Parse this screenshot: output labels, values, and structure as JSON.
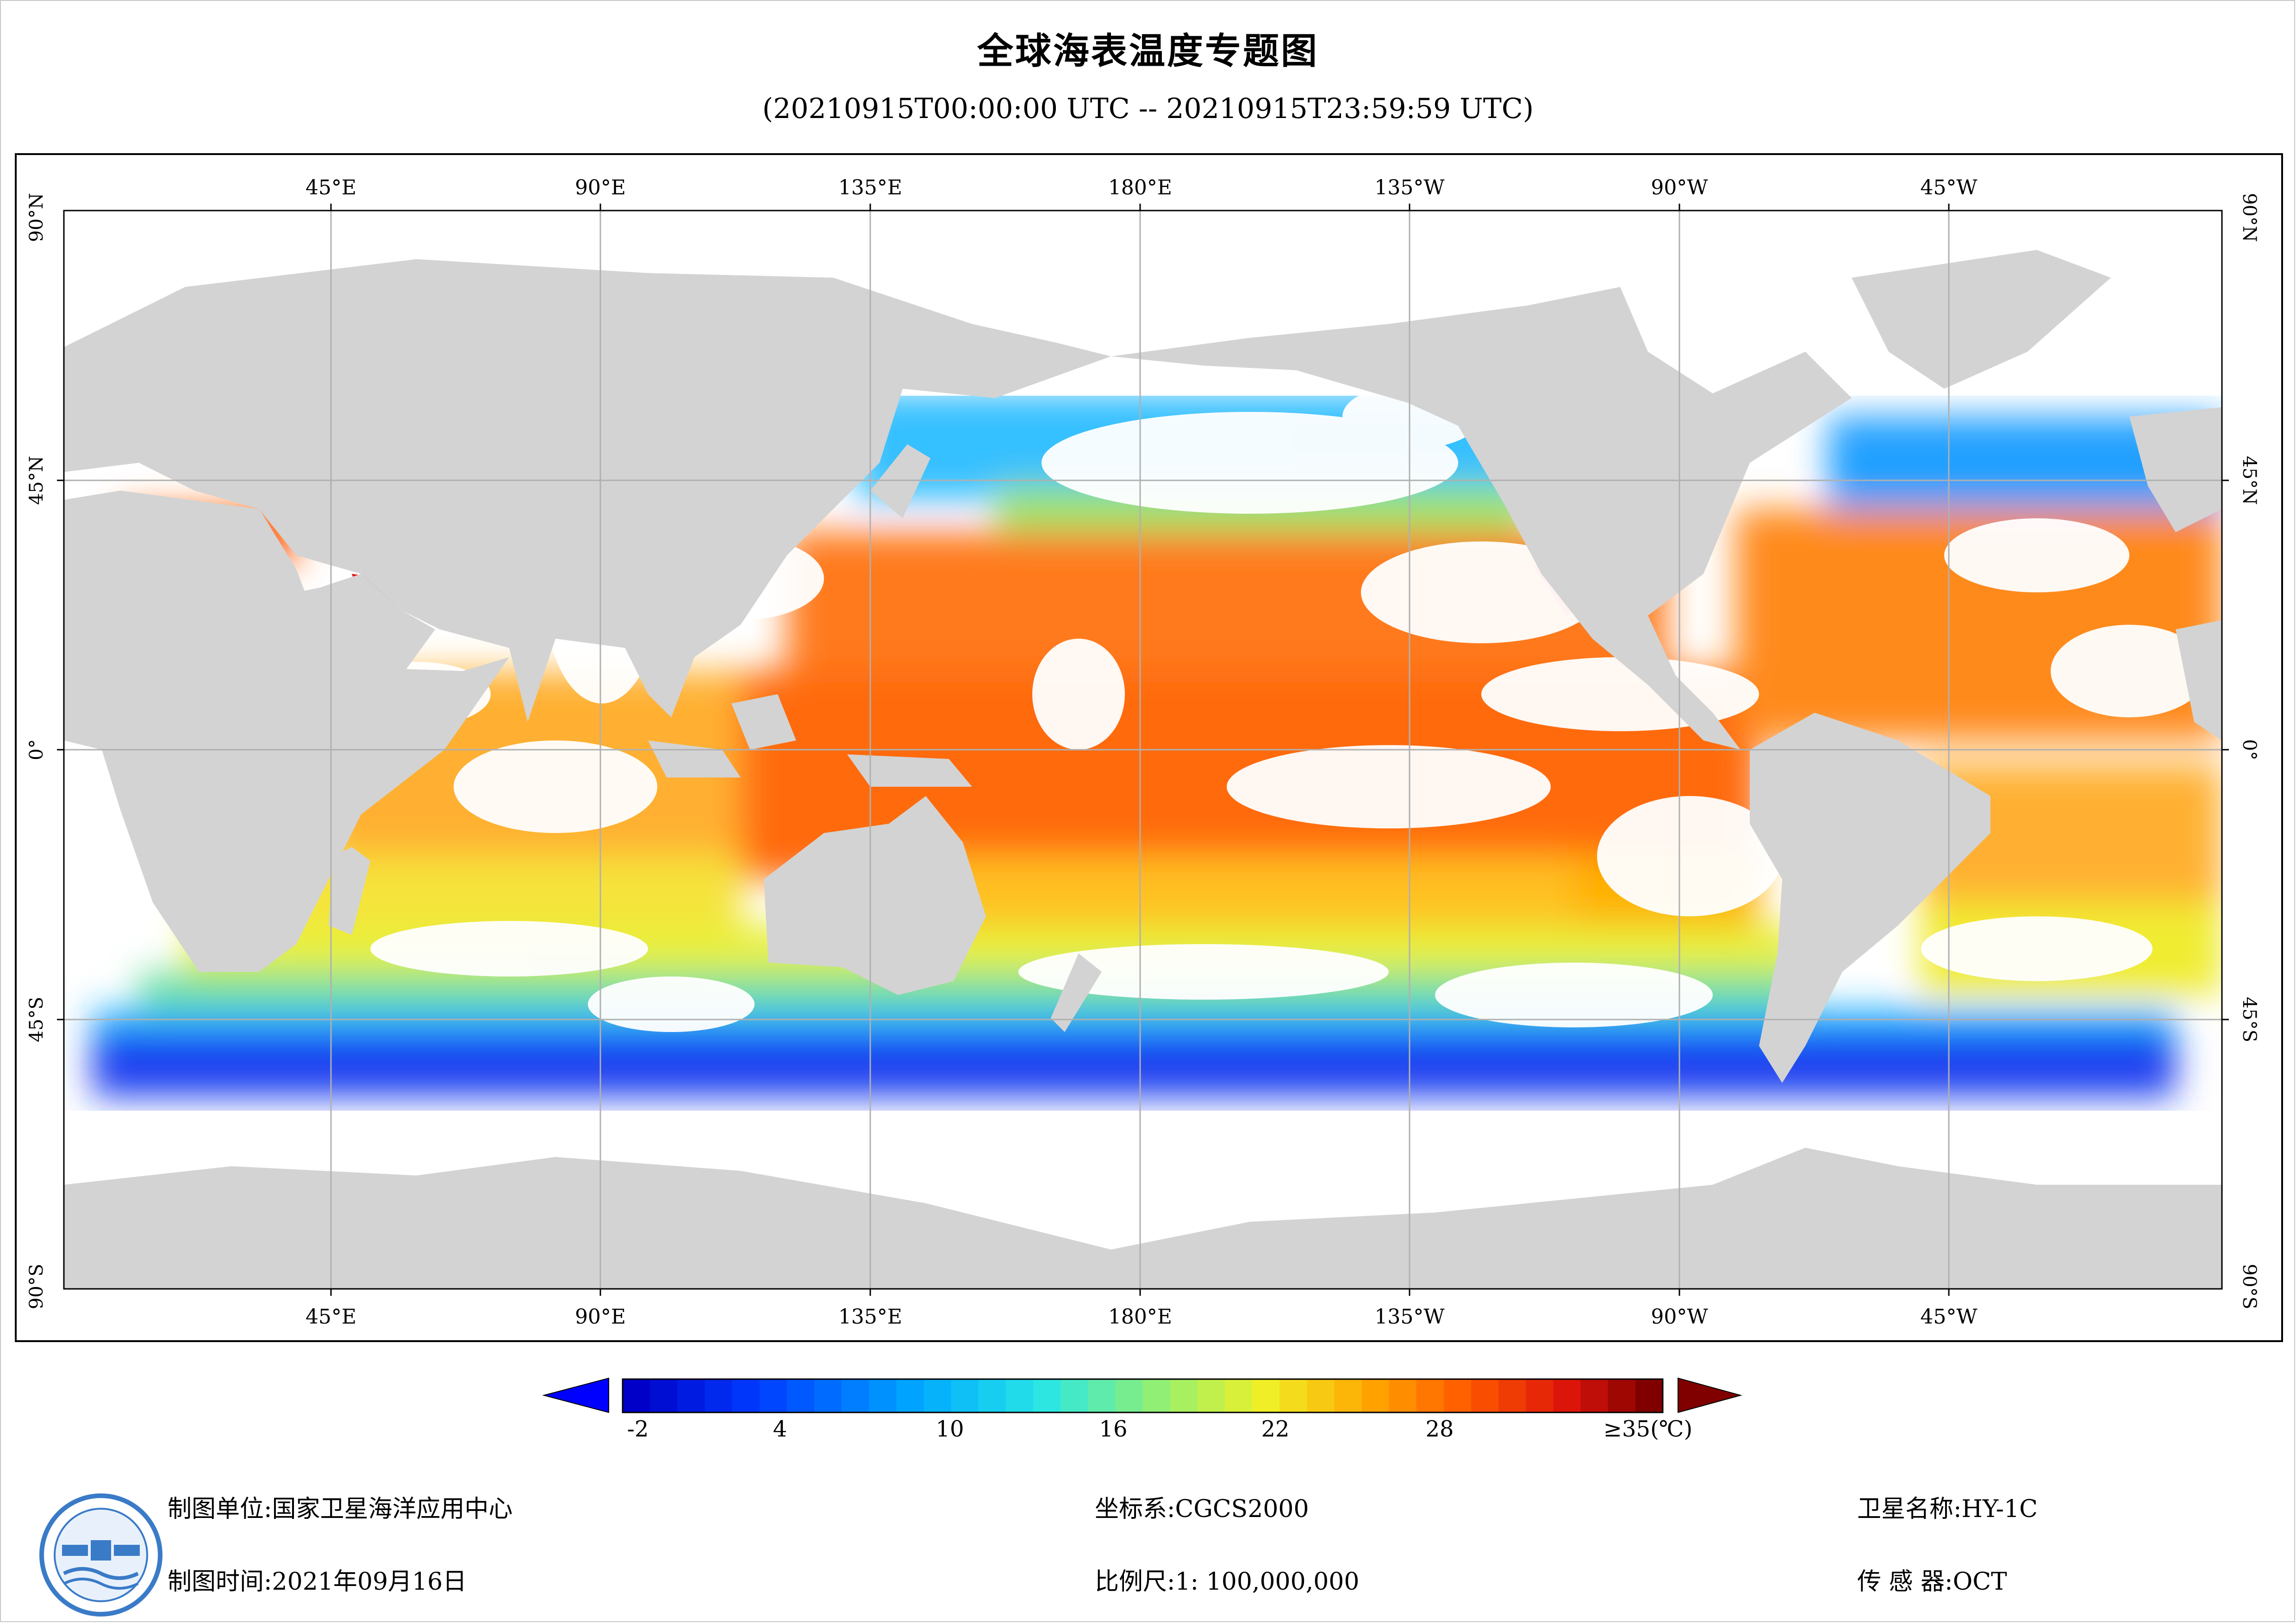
{
  "title": "全球海表温度专题图",
  "subtitle": "(20210915T00:00:00 UTC -- 20210915T23:59:59 UTC)",
  "map": {
    "lon_labels_top": [
      "45°E",
      "90°E",
      "135°E",
      "180°E",
      "135°W",
      "90°W",
      "45°W"
    ],
    "lon_labels_bottom": [
      "45°E",
      "90°E",
      "135°E",
      "180°E",
      "135°W",
      "90°W",
      "45°W"
    ],
    "lat_labels_left": [
      "90°N",
      "45°N",
      "0°",
      "45°S",
      "90°S"
    ],
    "lat_labels_right": [
      "90°N",
      "45°N",
      "0°",
      "45°S",
      "90°S"
    ],
    "land_color": "#d3d3d3",
    "cloud_color": "#ffffff",
    "gridline_color": "#b0b0b0"
  },
  "colorbar": {
    "tick_labels": [
      "-2",
      "4",
      "10",
      "16",
      "22",
      "28",
      "≥35(℃)"
    ],
    "tick_values": [
      -2,
      4,
      10,
      16,
      22,
      28,
      35
    ],
    "min": -3,
    "max": 35,
    "low_arrow_color": "#0000ff",
    "high_arrow_color": "#800000"
  },
  "footer": {
    "unit_label": "制图单位:",
    "unit_value": "国家卫星海洋应用中心",
    "time_label": "制图时间:",
    "time_value": "2021年09月16日",
    "crs_label": "坐标系:",
    "crs_value": "CGCS2000",
    "scale_label": "比例尺:",
    "scale_value": "1: 100,000,000",
    "satellite_label": "卫星名称:",
    "satellite_value": "HY-1C",
    "sensor_label": "传 感 器:",
    "sensor_value": "OCT"
  },
  "logo": {
    "name": "national-satellite-ocean-application-service-logo"
  }
}
